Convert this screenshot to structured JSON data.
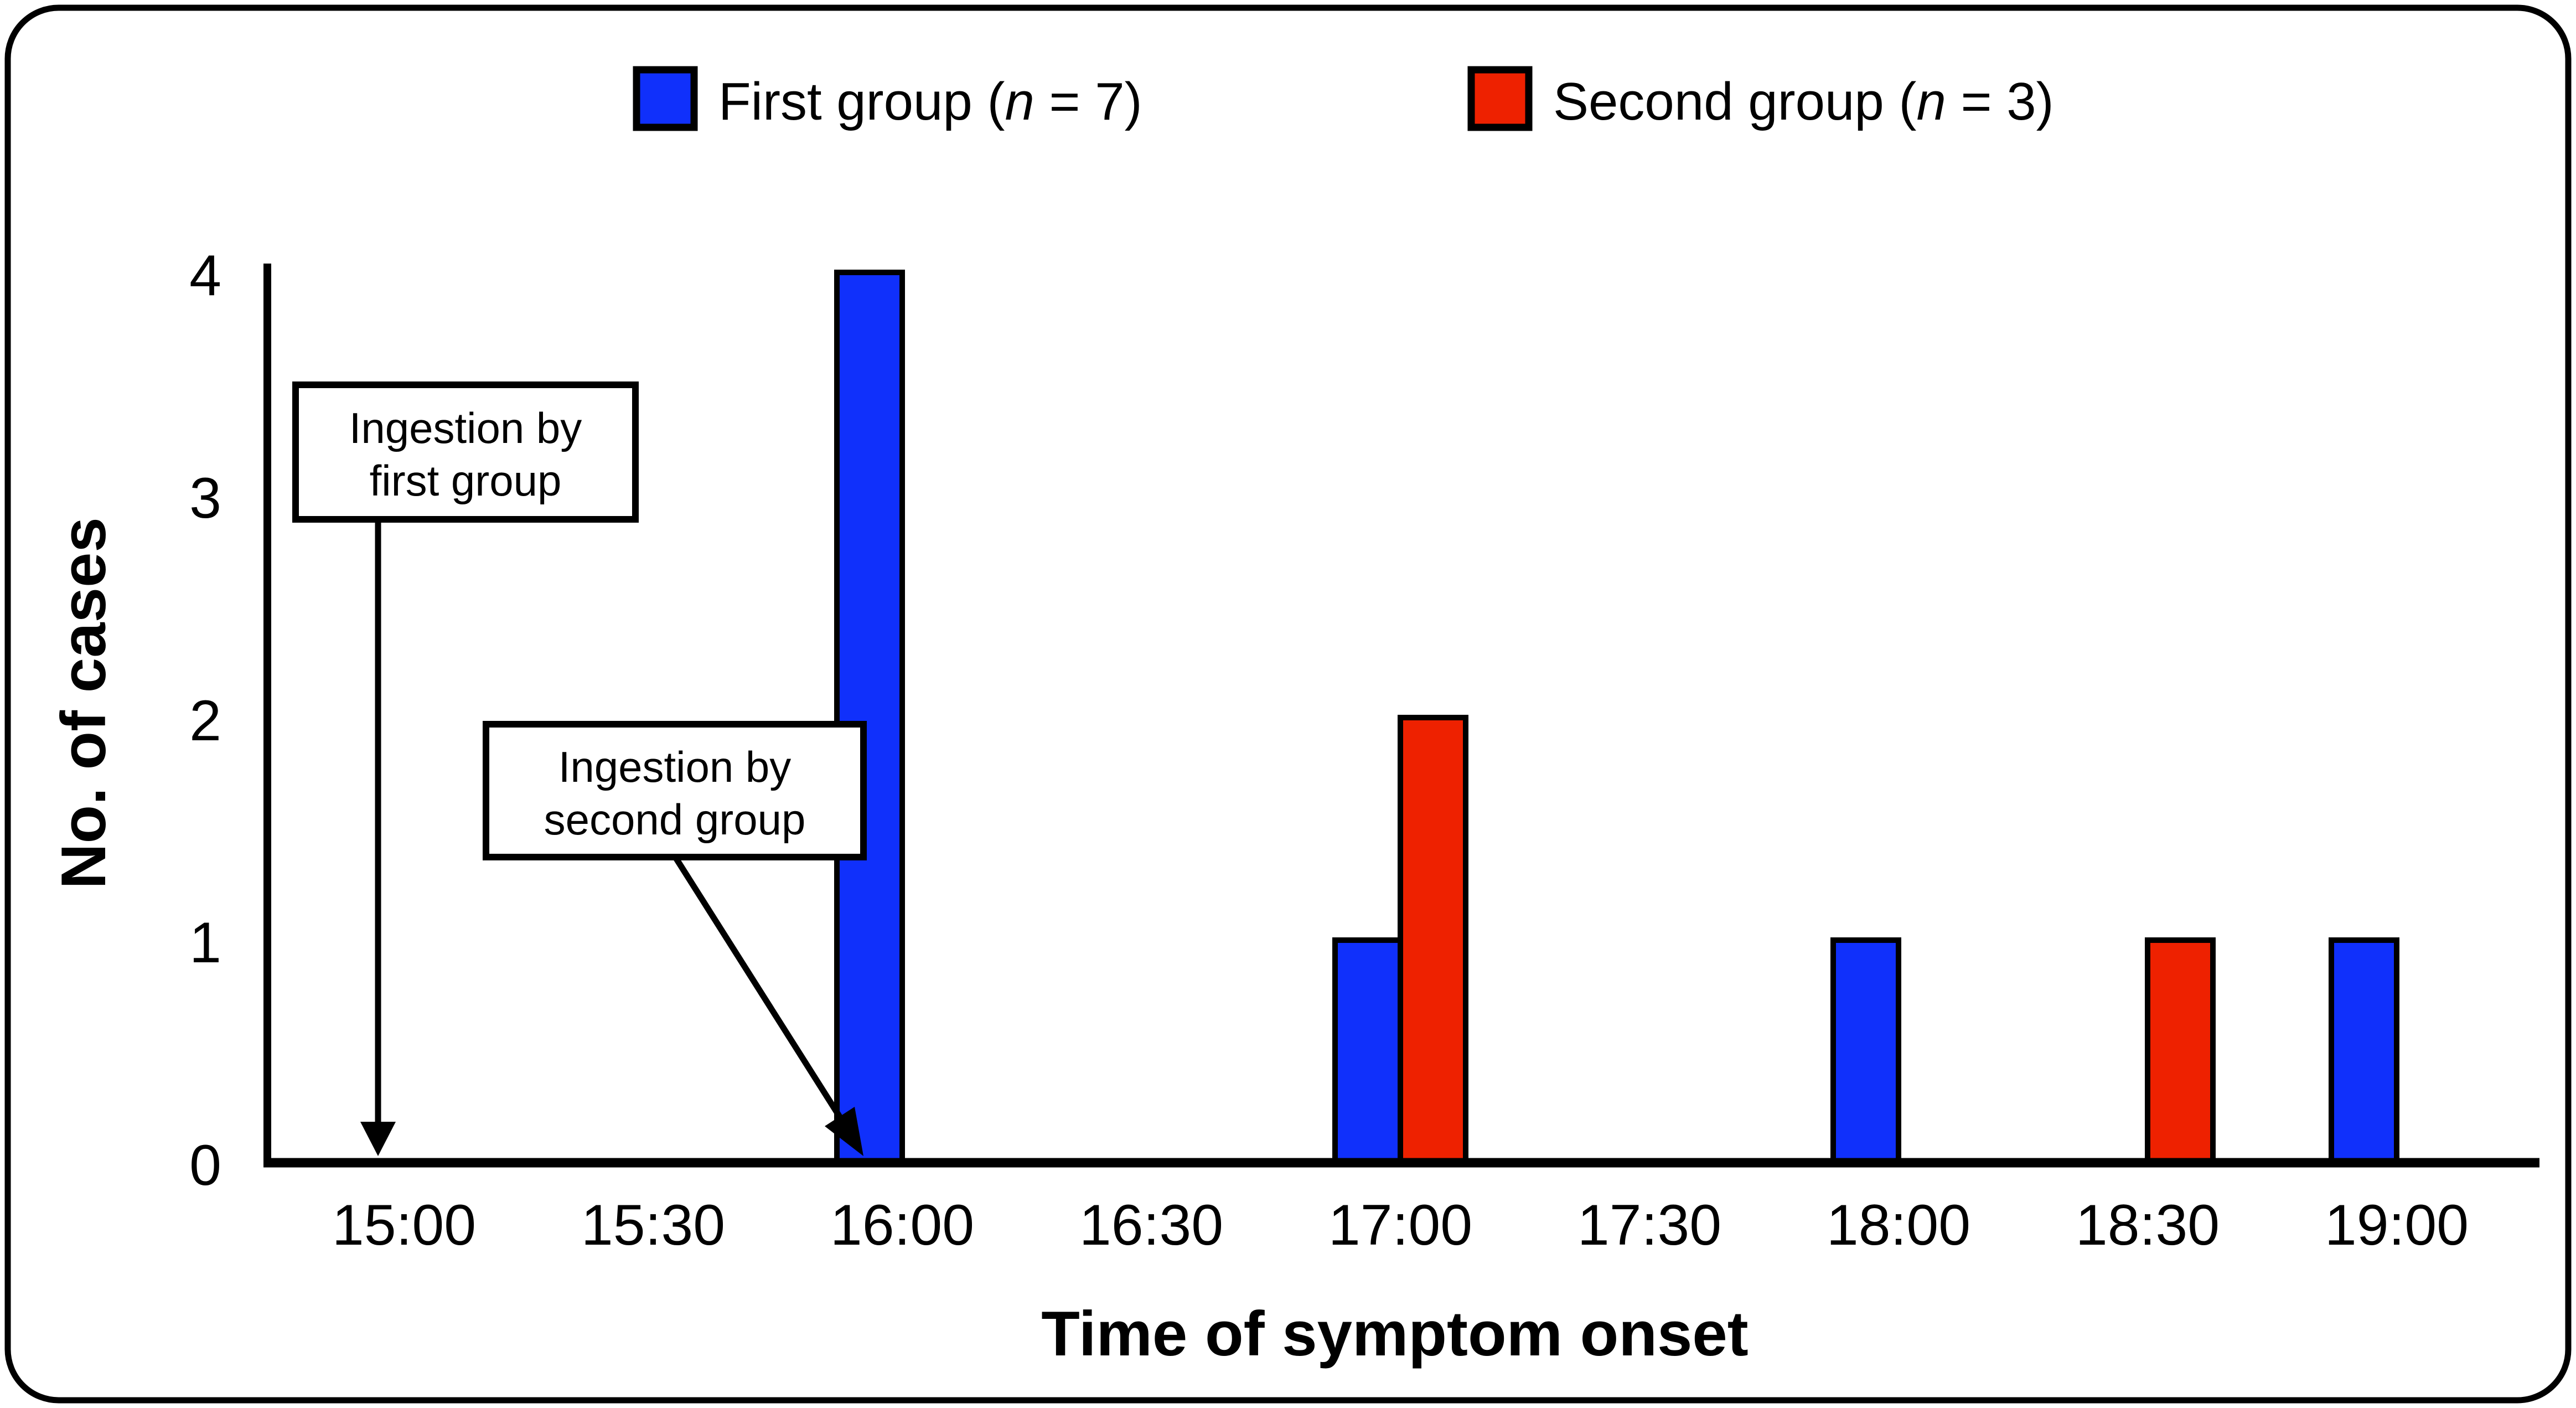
{
  "figure": {
    "kind": "epidemic-curve-bar-chart",
    "background": "#ffffff",
    "border_color": "#000000"
  },
  "legend": {
    "first": {
      "pre": "First group (",
      "var": "n",
      "post": " = 7)"
    },
    "second": {
      "pre": "Second group (",
      "var": "n",
      "post": " = 3)"
    }
  },
  "annotations": {
    "first": {
      "line1": "Ingestion by",
      "line2": "first group"
    },
    "second": {
      "line1": "Ingestion by",
      "line2": "second group"
    }
  },
  "chart_data": {
    "type": "bar",
    "xlabel": "Time of symptom onset",
    "ylabel": "No. of cases",
    "x_ticks": [
      "15:00",
      "15:30",
      "16:00",
      "16:30",
      "17:00",
      "17:30",
      "18:00",
      "18:30",
      "19:00"
    ],
    "y_tick_labels": [
      "0",
      "1",
      "2",
      "3",
      "4"
    ],
    "ylim": [
      0,
      4
    ],
    "bin_minutes": 15,
    "grid": false,
    "legend_position": "top",
    "series": [
      {
        "name": "First group",
        "n": 7,
        "color": "#1030fb",
        "bars": [
          {
            "time": "16:00",
            "align": "end",
            "value": 4
          },
          {
            "time": "17:00",
            "align": "end",
            "value": 1
          },
          {
            "time": "18:00",
            "align": "end",
            "value": 1
          },
          {
            "time": "19:00",
            "align": "end",
            "value": 1
          }
        ]
      },
      {
        "name": "Second group",
        "n": 3,
        "color": "#ee2100",
        "bars": [
          {
            "time": "17:00",
            "align": "start",
            "value": 2
          },
          {
            "time": "18:30",
            "align": "start",
            "value": 1
          }
        ]
      }
    ],
    "event_markers": [
      {
        "label": "Ingestion by first group",
        "time_near": "15:00"
      },
      {
        "label": "Ingestion by second group",
        "time_near": "16:00"
      }
    ]
  }
}
